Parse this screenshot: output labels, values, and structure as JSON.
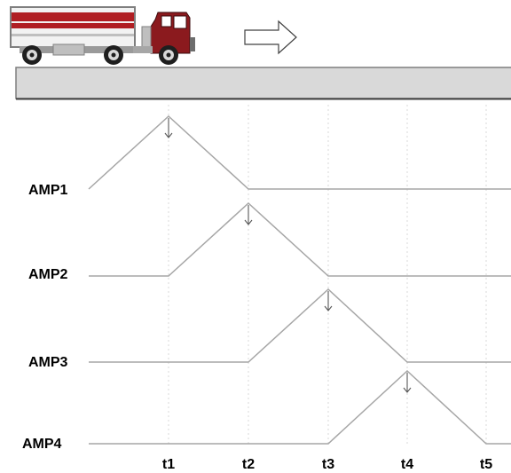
{
  "signals": [
    {
      "label": "AMP1",
      "peak_time": "t1"
    },
    {
      "label": "AMP2",
      "peak_time": "t2"
    },
    {
      "label": "AMP3",
      "peak_time": "t3"
    },
    {
      "label": "AMP4",
      "peak_time": "t4"
    }
  ],
  "time_ticks": [
    "t1",
    "t2",
    "t3",
    "t4",
    "t5"
  ],
  "vehicle": {
    "type": "truck",
    "direction": "right-arrow-icon"
  },
  "colors": {
    "trailer_stripe": "#b01e23",
    "cab": "#8b1a1e",
    "road": "#d9d9d9",
    "signal_line": "#a6a6a6",
    "grid": "#d0d0d0"
  }
}
